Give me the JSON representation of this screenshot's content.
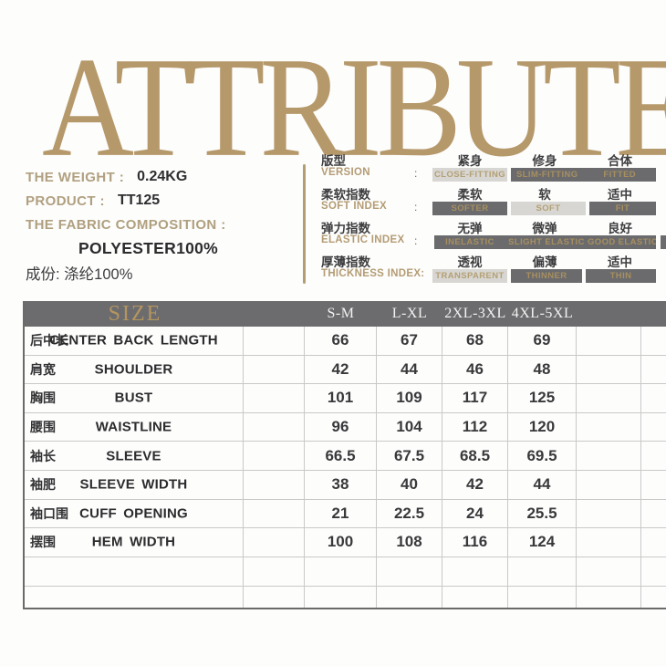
{
  "title": "ATTRIBUTE",
  "colors": {
    "title_gold": "#b6996b",
    "label_gold": "#b0a080",
    "bar_dark_bg": "#6b6b6d",
    "bar_light_bg": "#d8d6d2",
    "bar_text_gold": "#a78f60",
    "table_header_bg": "#6c6c6e",
    "size_title_gold": "#b4955f"
  },
  "product_info": {
    "weight_label": "THE WEIGHT :",
    "weight_value": "0.24KG",
    "product_label": "PRODUCT :",
    "product_value": "TT125",
    "fabric_label": "THE FABRIC COMPOSITION :",
    "fabric_value": "POLYESTER100%",
    "composition_cn": "成份: 涤纶100%"
  },
  "attributes": [
    {
      "label_cn": "版型",
      "label_en": "VERSION",
      "colon": ":",
      "options": [
        {
          "cn": "紧身",
          "en": "CLOSE-FITTING",
          "style": "light"
        },
        {
          "cn": "修身",
          "en": "SLIM-FITTING",
          "style": "dark"
        },
        {
          "cn": "合体",
          "en": "FITTED",
          "style": "dark"
        }
      ]
    },
    {
      "label_cn": "柔软指数",
      "label_en": "SOFT INDEX",
      "colon": ":",
      "options": [
        {
          "cn": "柔软",
          "en": "SOFTER",
          "style": "dark"
        },
        {
          "cn": "软",
          "en": "SOFT",
          "style": "light"
        },
        {
          "cn": "适中",
          "en": "FIT",
          "style": "dark"
        }
      ]
    },
    {
      "label_cn": "弹力指数",
      "label_en": "ELASTIC INDEX",
      "colon": ":",
      "options": [
        {
          "cn": "无弹",
          "en": "INELASTIC",
          "style": "dark"
        },
        {
          "cn": "微弹",
          "en": "SLIGHT ELASTIC",
          "style": "dark"
        },
        {
          "cn": "良好",
          "en": "GOOD ELASTIC",
          "style": "dark"
        }
      ]
    },
    {
      "label_cn": "厚薄指数",
      "label_en": "THICKNESS INDEX:",
      "options": [
        {
          "cn": "透视",
          "en": "TRANSPARENT",
          "style": "light"
        },
        {
          "cn": "偏薄",
          "en": "THINNER",
          "style": "dark"
        },
        {
          "cn": "适中",
          "en": "THIN",
          "style": "dark"
        }
      ]
    }
  ],
  "size_table": {
    "title": "SIZE",
    "columns": [
      "S-M",
      "L-XL",
      "2XL-3XL",
      "4XL-5XL"
    ],
    "rows": [
      {
        "cn": "后中长",
        "en": "CENTER BACK LENGTH",
        "values": [
          "66",
          "67",
          "68",
          "69"
        ]
      },
      {
        "cn": "肩宽",
        "en": "SHOULDER",
        "values": [
          "42",
          "44",
          "46",
          "48"
        ]
      },
      {
        "cn": "胸围",
        "en": "BUST",
        "values": [
          "101",
          "109",
          "117",
          "125"
        ]
      },
      {
        "cn": "腰围",
        "en": "WAISTLINE",
        "values": [
          "96",
          "104",
          "112",
          "120"
        ]
      },
      {
        "cn": "袖长",
        "en": "SLEEVE",
        "values": [
          "66.5",
          "67.5",
          "68.5",
          "69.5"
        ]
      },
      {
        "cn": "袖肥",
        "en": "SLEEVE WIDTH",
        "values": [
          "38",
          "40",
          "42",
          "44"
        ]
      },
      {
        "cn": "袖口围",
        "en": "CUFF OPENING",
        "values": [
          "21",
          "22.5",
          "24",
          "25.5"
        ]
      },
      {
        "cn": "摆围",
        "en": "HEM WIDTH",
        "values": [
          "100",
          "108",
          "116",
          "124"
        ]
      }
    ]
  }
}
